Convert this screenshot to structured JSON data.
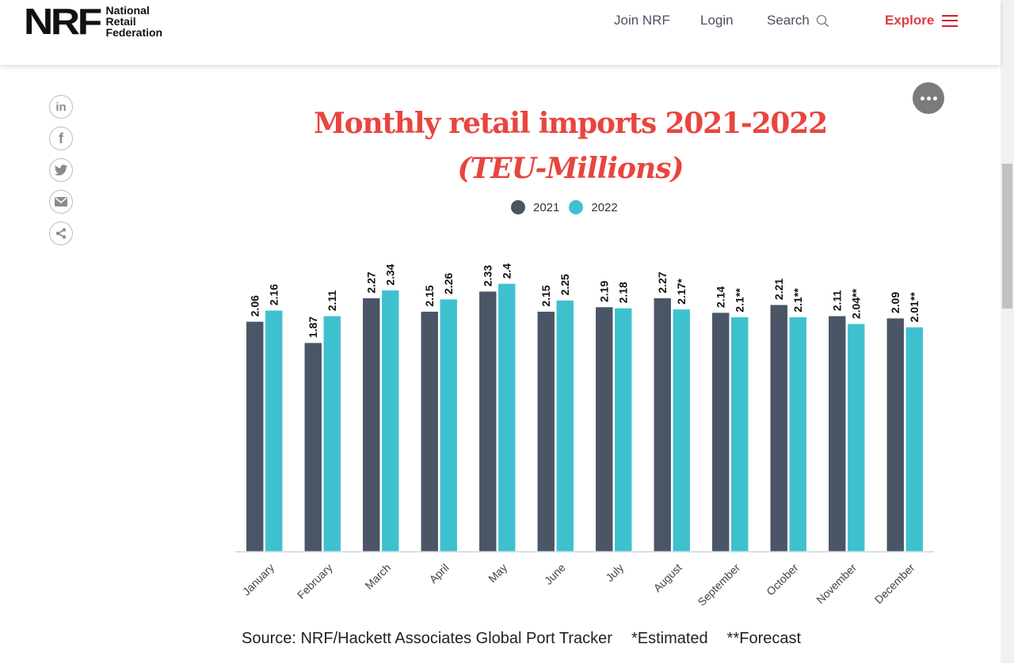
{
  "header": {
    "logo_mark": "NRF",
    "logo_lines": [
      "National",
      "Retail",
      "Federation"
    ],
    "nav": {
      "join": "Join NRF",
      "login": "Login",
      "search": "Search",
      "explore": "Explore"
    }
  },
  "share_icons": [
    "linkedin-icon",
    "facebook-icon",
    "twitter-icon",
    "email-icon",
    "share-icon"
  ],
  "colors": {
    "series_2021": "#4a5566",
    "series_2022": "#3ec1cf",
    "title": "#e8453e",
    "explore": "#e03a45"
  },
  "chart_data": {
    "type": "bar",
    "title": "Monthly retail imports 2021-2022",
    "subtitle": "(TEU-Millions)",
    "xlabel": "",
    "ylabel": "",
    "ylim": [
      0,
      2.75
    ],
    "grid": false,
    "legend": "top-center",
    "categories": [
      "January",
      "February",
      "March",
      "April",
      "May",
      "June",
      "July",
      "August",
      "September",
      "October",
      "November",
      "December"
    ],
    "series": [
      {
        "name": "2021",
        "values": [
          2.06,
          1.87,
          2.27,
          2.15,
          2.33,
          2.15,
          2.19,
          2.27,
          2.14,
          2.21,
          2.11,
          2.09
        ],
        "labels": [
          "2.06",
          "1.87",
          "2.27",
          "2.15",
          "2.33",
          "2.15",
          "2.19",
          "2.27",
          "2.14",
          "2.21",
          "2.11",
          "2.09"
        ]
      },
      {
        "name": "2022",
        "values": [
          2.16,
          2.11,
          2.34,
          2.26,
          2.4,
          2.25,
          2.18,
          2.17,
          2.1,
          2.1,
          2.04,
          2.01
        ],
        "labels": [
          "2.16",
          "2.11",
          "2.34",
          "2.26",
          "2.4",
          "2.25",
          "2.18",
          "2.17*",
          "2.1**",
          "2.1**",
          "2.04**",
          "2.01**"
        ]
      }
    ],
    "footnotes": {
      "source": "Source: NRF/Hackett Associates Global Port Tracker",
      "estimated": "*Estimated",
      "forecast": "**Forecast"
    }
  }
}
